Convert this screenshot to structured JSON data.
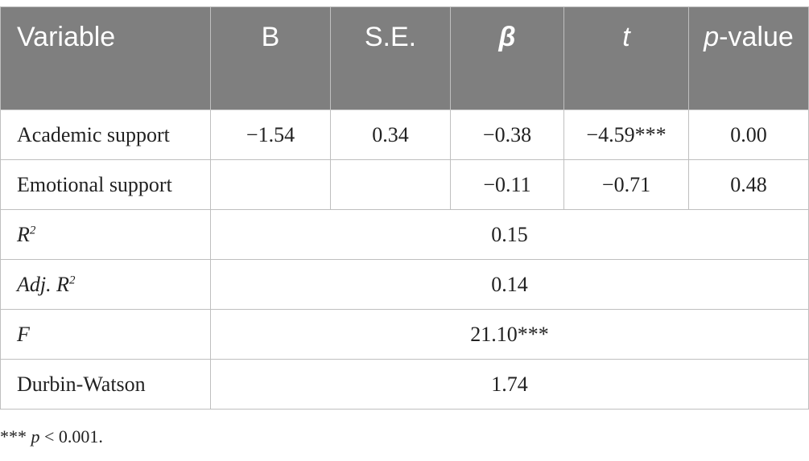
{
  "table": {
    "header": [
      "Variable",
      "B",
      "S.E.",
      "β",
      "t",
      [
        "p",
        "-value"
      ]
    ],
    "rows": [
      {
        "variable": "Academic support",
        "B": "−1.54",
        "SE": "0.34",
        "beta": "−0.38",
        "t": "−4.59***",
        "p": "0.00"
      },
      {
        "variable": "Emotional support",
        "beta": "−0.11",
        "t": "−0.71",
        "p": "0.48"
      }
    ],
    "summary": [
      {
        "label": [
          "R",
          "2"
        ],
        "value": "0.15"
      },
      {
        "label": [
          "Adj. R",
          "2"
        ],
        "value": "0.14"
      },
      {
        "label": [
          "F"
        ],
        "value": "21.10***"
      },
      {
        "label": [
          "Durbin-Watson"
        ],
        "value": "1.74"
      }
    ]
  },
  "footnote": [
    "***",
    "p",
    "< 0.001."
  ]
}
